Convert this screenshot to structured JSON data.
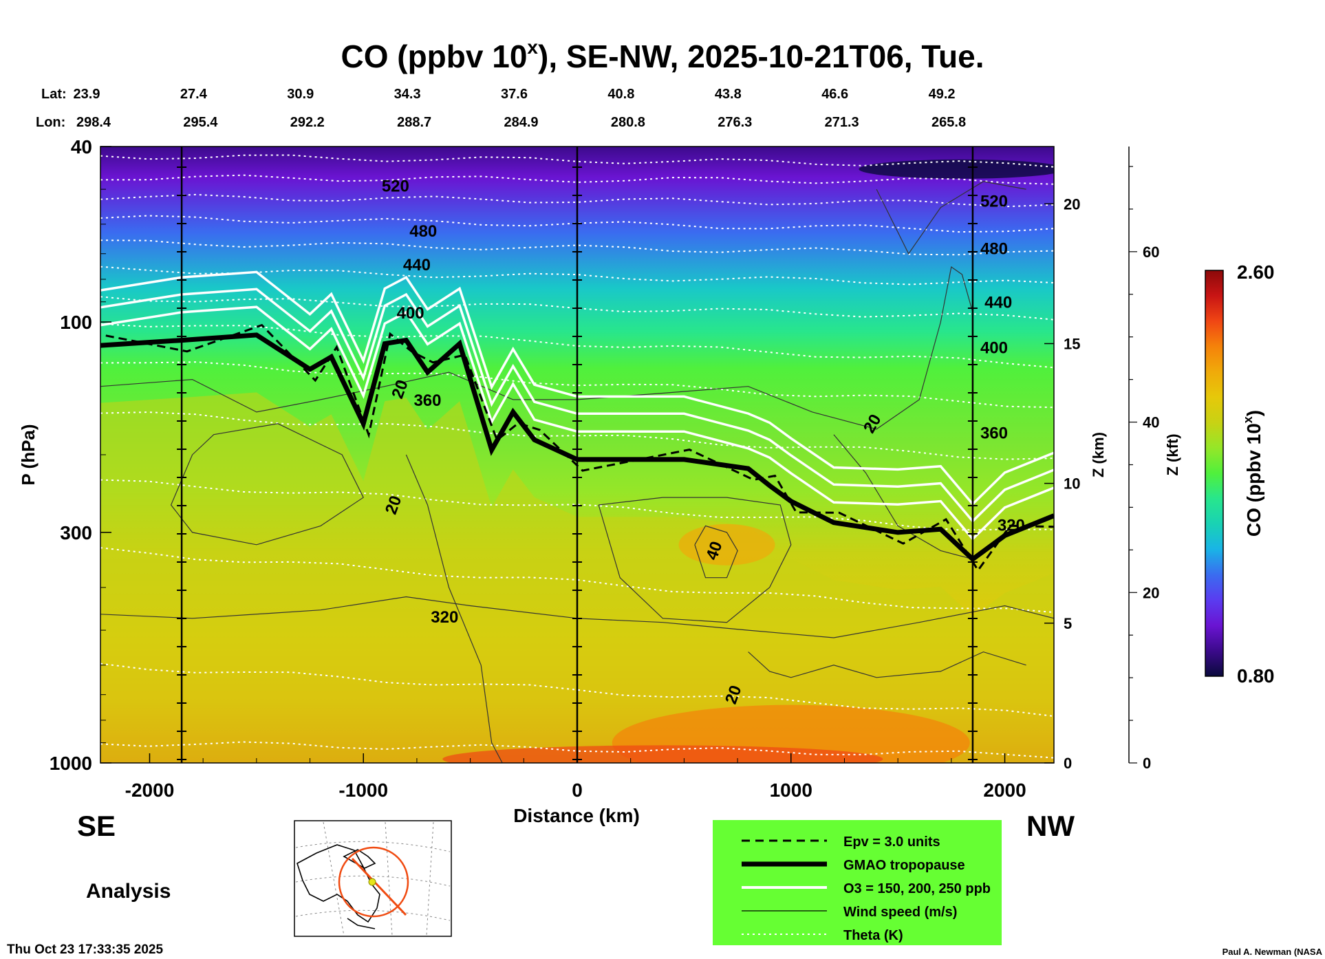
{
  "chart_data": {
    "type": "heatmap",
    "title": "CO (ppbv 10",
    "title_sup": "x",
    "title_rest": "), SE-NW, 2025-10-21T06, Tue.",
    "lat_label": "Lat:",
    "lon_label": "Lon:",
    "lat_values": [
      "23.9",
      "27.4",
      "30.9",
      "34.3",
      "37.6",
      "40.8",
      "43.8",
      "46.6",
      "49.2"
    ],
    "lon_values": [
      "298.4",
      "295.4",
      "292.2",
      "288.7",
      "284.9",
      "280.8",
      "276.3",
      "271.3",
      "265.8"
    ],
    "xlabel": "Distance (km)",
    "xticks": [
      -2000,
      -1000,
      0,
      1000,
      2000
    ],
    "xlim": [
      -2230,
      2230
    ],
    "ylabel": "P (hPa)",
    "y_scale": "log",
    "yticks": [
      40,
      100,
      300,
      1000
    ],
    "ylim": [
      1000,
      40
    ],
    "z_km_label": "Z (km)",
    "z_km_ticks": [
      0,
      5,
      10,
      15,
      20
    ],
    "z_kft_label": "Z (kft)",
    "z_kft_ticks": [
      0,
      20,
      40,
      60
    ],
    "colorbar": {
      "label": "CO (ppbv 10",
      "label_sup": "x",
      "label_end": ")",
      "max": "2.60",
      "min": "0.80",
      "max_value": 2.6,
      "min_value": 0.8
    },
    "left_label": "SE",
    "right_label": "NW",
    "analysis_label": "Analysis",
    "theta_labels": [
      "520",
      "480",
      "440",
      "400",
      "360",
      "320",
      "520",
      "480",
      "440",
      "400",
      "360",
      "320"
    ],
    "wind_labels": [
      "20",
      "20",
      "20",
      "40",
      "20"
    ],
    "legend": [
      {
        "label": "Epv = 3.0 units",
        "style": "dashed"
      },
      {
        "label": "GMAO tropopause",
        "style": "thick"
      },
      {
        "label": "O3 = 150, 200, 250 ppb",
        "style": "white"
      },
      {
        "label": "Wind speed (m/s)",
        "style": "thin"
      },
      {
        "label": "Theta (K)",
        "style": "dotted"
      }
    ],
    "legend_color": "#66ff33",
    "tropopause_hpa": [
      [
        -2230,
        113
      ],
      [
        -1850,
        110
      ],
      [
        -1500,
        107
      ],
      [
        -1250,
        128
      ],
      [
        -1150,
        120
      ],
      [
        -1000,
        170
      ],
      [
        -900,
        112
      ],
      [
        -800,
        110
      ],
      [
        -700,
        130
      ],
      [
        -550,
        112
      ],
      [
        -400,
        195
      ],
      [
        -300,
        160
      ],
      [
        -200,
        185
      ],
      [
        0,
        205
      ],
      [
        500,
        205
      ],
      [
        800,
        215
      ],
      [
        900,
        235
      ],
      [
        1000,
        255
      ],
      [
        1200,
        285
      ],
      [
        1500,
        300
      ],
      [
        1700,
        295
      ],
      [
        1850,
        345
      ],
      [
        2000,
        305
      ],
      [
        2230,
        275
      ]
    ],
    "co_palette": [
      "#0a0a3c",
      "#3c0a8c",
      "#6a14d2",
      "#5a3cf0",
      "#3a6cf0",
      "#19b4e6",
      "#19d2b4",
      "#28e68c",
      "#50f03c",
      "#96e628",
      "#c8d214",
      "#e6c80a",
      "#f0aa0a",
      "#f5820a",
      "#f04614",
      "#c81414",
      "#8c0a0a"
    ]
  },
  "footer": {
    "timestamp": "Thu Oct 23 17:33:35 2025",
    "credit": "Paul A. Newman (NASA"
  }
}
